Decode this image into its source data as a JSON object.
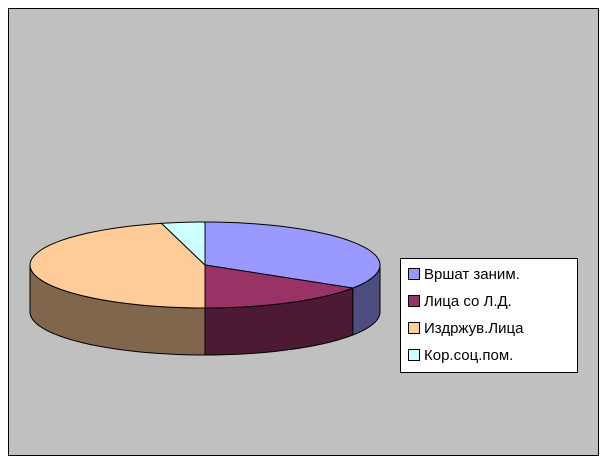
{
  "chart_data": {
    "type": "pie3d",
    "categories": [
      "Вршат заним.",
      "Лица со Л.Д.",
      "Издржув.Лица",
      "Кор.соц.пом."
    ],
    "values": [
      34,
      16,
      46,
      4
    ],
    "colors": [
      "#9999ff",
      "#993366",
      "#ffcc99",
      "#ccffff"
    ],
    "legend": "right"
  }
}
